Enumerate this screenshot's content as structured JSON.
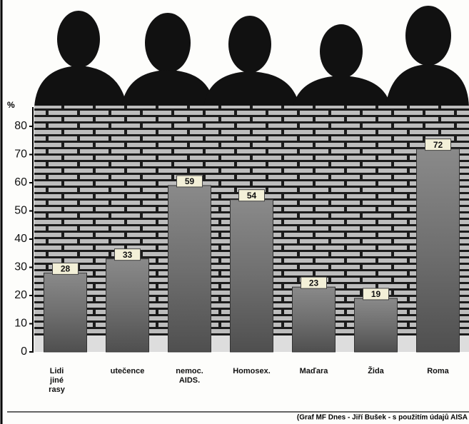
{
  "chart_data": {
    "type": "bar",
    "y_label": "%",
    "categories": [
      "Lidi jiné rasy",
      "utečence",
      "nemoc. AIDS.",
      "Homosex.",
      "Maďara",
      "Žida",
      "Roma"
    ],
    "values": [
      28,
      33,
      59,
      54,
      23,
      19,
      72
    ],
    "color": "#6f6f6f",
    "ylim": [
      0,
      80
    ],
    "yticks": [
      0,
      10,
      20,
      30,
      40,
      50,
      60,
      70,
      80
    ],
    "source": "(Graf MF Dnes - Jiří Bušek - s použitím údajů AISA"
  }
}
